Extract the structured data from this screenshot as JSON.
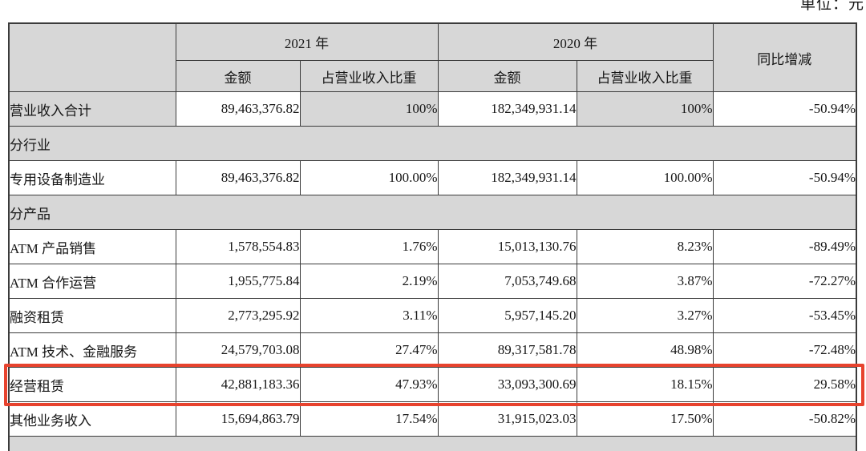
{
  "unit_label": "单位：元",
  "colors": {
    "header_bg": "#d7d7d7",
    "highlight_border": "#e7432e",
    "table_border": "#3b3b3b"
  },
  "table": {
    "col_headers": {
      "year_2021": "2021 年",
      "year_2020": "2020 年",
      "yoy": "同比增减",
      "amount": "金额",
      "pct": "占营业收入比重"
    },
    "rows": [
      {
        "type": "total",
        "label": "营业收入合计",
        "values": [
          "89,463,376.82",
          "100%",
          "182,349,931.14",
          "100%",
          "-50.94%"
        ]
      },
      {
        "type": "section",
        "label": "分行业"
      },
      {
        "type": "data",
        "label": "专用设备制造业",
        "values": [
          "89,463,376.82",
          "100.00%",
          "182,349,931.14",
          "100.00%",
          "-50.94%"
        ]
      },
      {
        "type": "section",
        "label": "分产品"
      },
      {
        "type": "data",
        "label": "ATM 产品销售",
        "values": [
          "1,578,554.83",
          "1.76%",
          "15,013,130.76",
          "8.23%",
          "-89.49%"
        ]
      },
      {
        "type": "data",
        "label": "ATM 合作运营",
        "values": [
          "1,955,775.84",
          "2.19%",
          "7,053,749.68",
          "3.87%",
          "-72.27%"
        ]
      },
      {
        "type": "data",
        "label": "融资租赁",
        "values": [
          "2,773,295.92",
          "3.11%",
          "5,957,145.20",
          "3.27%",
          "-53.45%"
        ]
      },
      {
        "type": "data",
        "label": "ATM 技术、金融服务",
        "values": [
          "24,579,703.08",
          "27.47%",
          "89,317,581.78",
          "48.98%",
          "-72.48%"
        ]
      },
      {
        "type": "data",
        "label": "经营租赁",
        "highlight": true,
        "values": [
          "42,881,183.36",
          "47.93%",
          "33,093,300.69",
          "18.15%",
          "29.58%"
        ]
      },
      {
        "type": "data",
        "label": "其他业务收入",
        "values": [
          "15,694,863.79",
          "17.54%",
          "31,915,023.03",
          "17.50%",
          "-50.82%"
        ]
      },
      {
        "type": "section",
        "label": ""
      }
    ]
  }
}
